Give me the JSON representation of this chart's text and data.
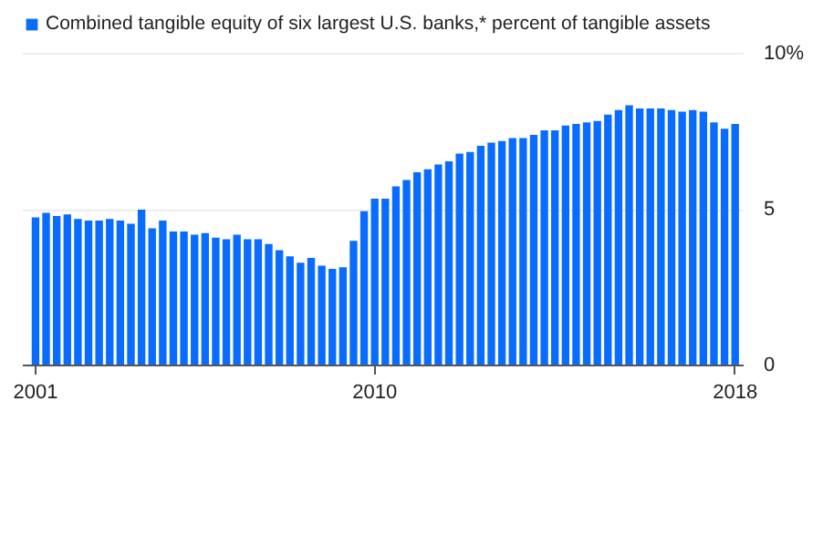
{
  "chart_data": {
    "type": "bar",
    "categories": [
      "2001",
      null,
      null,
      null,
      null,
      null,
      null,
      null,
      null,
      null,
      null,
      null,
      null,
      null,
      null,
      null,
      null,
      null,
      null,
      null,
      null,
      null,
      null,
      null,
      null,
      null,
      null,
      null,
      null,
      null,
      null,
      null,
      "2010",
      null,
      null,
      null,
      null,
      null,
      null,
      null,
      null,
      null,
      null,
      null,
      null,
      null,
      null,
      null,
      null,
      null,
      null,
      null,
      null,
      null,
      null,
      null,
      null,
      null,
      null,
      null,
      null,
      null,
      null,
      null,
      null,
      null,
      "2018"
    ],
    "series": [
      {
        "name": "Combined tangible equity of six largest U.S. banks,* percent of tangible assets",
        "color": "#0a6cff",
        "values": [
          4.75,
          4.9,
          4.8,
          4.85,
          4.7,
          4.65,
          4.65,
          4.7,
          4.65,
          4.55,
          5.0,
          4.4,
          4.65,
          4.3,
          4.3,
          4.2,
          4.25,
          4.1,
          4.05,
          4.2,
          4.05,
          4.05,
          3.9,
          3.7,
          3.5,
          3.3,
          3.45,
          3.2,
          3.1,
          3.15,
          4.0,
          4.95,
          5.35,
          5.35,
          5.75,
          5.95,
          6.2,
          6.3,
          6.45,
          6.55,
          6.8,
          6.85,
          7.05,
          7.15,
          7.2,
          7.3,
          7.3,
          7.4,
          7.55,
          7.55,
          7.7,
          7.75,
          7.8,
          7.85,
          8.05,
          8.2,
          8.35,
          8.25,
          8.25,
          8.25,
          8.2,
          8.15,
          8.2,
          8.15,
          7.8,
          7.6,
          7.75
        ]
      }
    ],
    "ylim": [
      0,
      10
    ],
    "yticks": [
      0,
      5,
      {
        "value": 10,
        "label": "10%"
      }
    ],
    "grid": "y",
    "legend": "top left"
  }
}
